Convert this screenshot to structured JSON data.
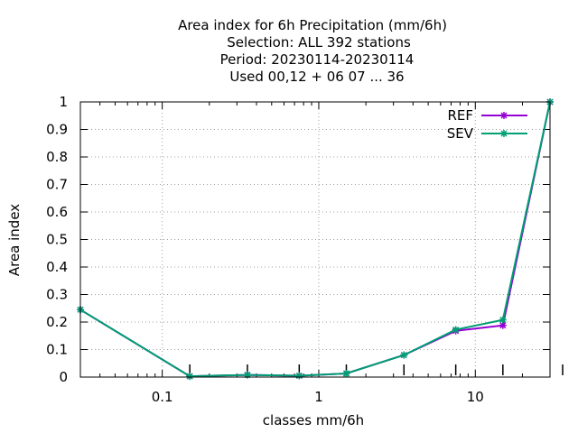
{
  "chart_data": {
    "type": "line",
    "title_lines": [
      "Area index  for 6h Precipitation (mm/6h)",
      "Selection: ALL    392 stations",
      "Period: 20230114-20230114",
      "Used  00,12  + 06 07 ... 36"
    ],
    "xlabel": "classes mm/6h",
    "ylabel": "Area index",
    "x_scale": "log",
    "xlim": [
      0.03,
      30
    ],
    "ylim": [
      0,
      1
    ],
    "x_ticks": [
      {
        "value": 0.1,
        "label": "0.1"
      },
      {
        "value": 1,
        "label": "1"
      },
      {
        "value": 10,
        "label": "10"
      }
    ],
    "y_ticks": [
      {
        "value": 0,
        "label": "0"
      },
      {
        "value": 0.1,
        "label": "0.1"
      },
      {
        "value": 0.2,
        "label": "0.2"
      },
      {
        "value": 0.3,
        "label": "0.3"
      },
      {
        "value": 0.4,
        "label": "0.4"
      },
      {
        "value": 0.5,
        "label": "0.5"
      },
      {
        "value": 0.6,
        "label": "0.6"
      },
      {
        "value": 0.7,
        "label": "0.7"
      },
      {
        "value": 0.8,
        "label": "0.8"
      },
      {
        "value": 0.9,
        "label": "0.9"
      },
      {
        "value": 1,
        "label": "1"
      }
    ],
    "grid": true,
    "legend_position": "top-right",
    "series": [
      {
        "name": "REF",
        "color": "#9400d3",
        "x": [
          0.03,
          0.15,
          0.35,
          0.75,
          1.5,
          3.5,
          7.5,
          15,
          30
        ],
        "y": [
          0.245,
          0.003,
          0.008,
          0.005,
          0.013,
          0.08,
          0.168,
          0.188,
          1.0
        ]
      },
      {
        "name": "SEV",
        "color": "#009e73",
        "x": [
          0.03,
          0.15,
          0.35,
          0.75,
          1.5,
          3.5,
          7.5,
          15,
          30
        ],
        "y": [
          0.245,
          0.003,
          0.008,
          0.005,
          0.013,
          0.08,
          0.172,
          0.208,
          1.0
        ]
      }
    ]
  }
}
